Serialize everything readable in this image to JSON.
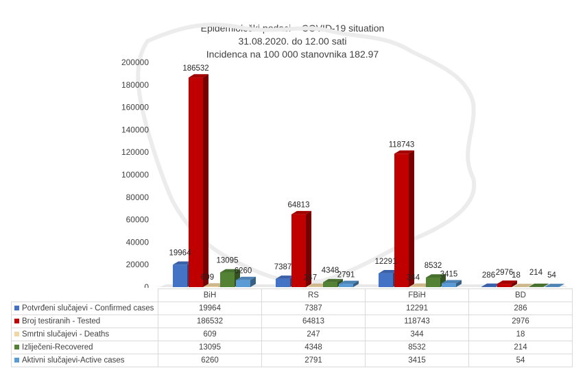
{
  "title": {
    "line1": "Epidemiološki podaci – COVID-19 situation",
    "line2": "31.08.2020. do 12.00 sati",
    "line3": "Incidenca na 100 000 stanovnika 182.97"
  },
  "colors": {
    "confirmed": "#4472c4",
    "tested": "#c00000",
    "deaths": "#f2d7a6",
    "recovered": "#548235",
    "active": "#5b9bd5"
  },
  "chart_data": {
    "type": "bar",
    "title": "Epidemiološki podaci – COVID-19 situation",
    "subtitle": "31.08.2020. do 12.00 sati / Incidenca na 100 000 stanovnika 182.97",
    "categories": [
      "BiH",
      "RS",
      "FBiH",
      "BD"
    ],
    "ylim": [
      0,
      200000
    ],
    "yticks": [
      "0",
      "20000",
      "40000",
      "60000",
      "80000",
      "100000",
      "120000",
      "140000",
      "160000",
      "180000",
      "200000"
    ],
    "grid": false,
    "legend": "data-table",
    "series": [
      {
        "name": "Potvrđeni slučajevi - Confirmed cases",
        "key": "confirmed",
        "values": [
          19964,
          7387,
          12291,
          286
        ]
      },
      {
        "name": "Broj testiranih - Tested",
        "key": "tested",
        "values": [
          186532,
          64813,
          118743,
          2976
        ]
      },
      {
        "name": "Smrtni slučajevi - Deaths",
        "key": "deaths",
        "values": [
          609,
          247,
          344,
          18
        ]
      },
      {
        "name": "Izliječeni-Recovered",
        "key": "recovered",
        "values": [
          13095,
          4348,
          8532,
          214
        ]
      },
      {
        "name": "Aktivni slučajevi-Active cases",
        "key": "active",
        "values": [
          6260,
          2791,
          3415,
          54
        ]
      }
    ]
  }
}
